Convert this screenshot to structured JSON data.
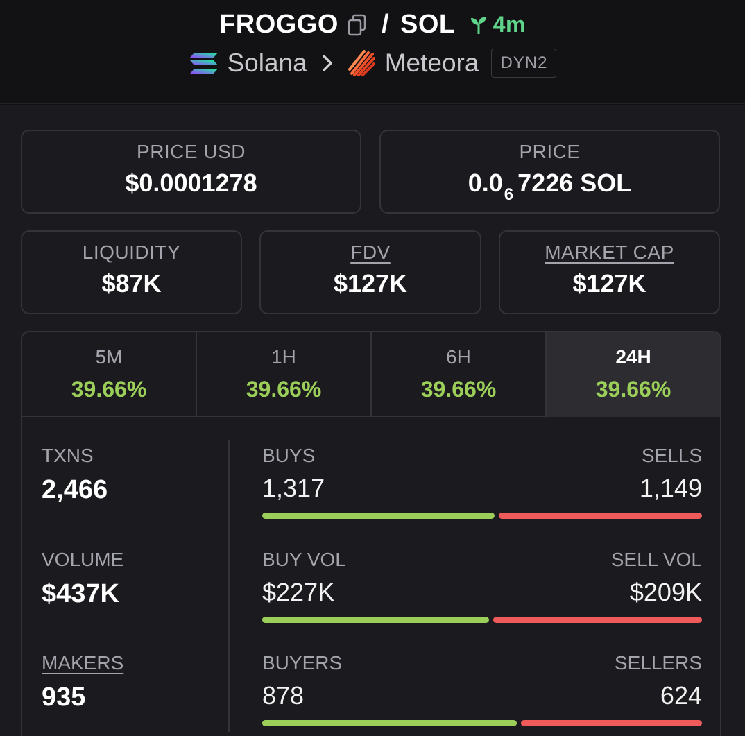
{
  "header": {
    "base_token": "FROGGO",
    "separator": "/",
    "quote_token": "SOL",
    "age": "4m",
    "chain": "Solana",
    "dex": "Meteora",
    "dex_badge": "DYN2",
    "colors": {
      "age": "#5fd48a"
    }
  },
  "price": {
    "usd_label": "PRICE USD",
    "usd_value": "$0.0001278",
    "native_label": "PRICE",
    "native_prefix": "0.0",
    "native_zeros": "6",
    "native_rest": "7226 SOL"
  },
  "metrics": {
    "liquidity_label": "LIQUIDITY",
    "liquidity_value": "$87K",
    "fdv_label": "FDV",
    "fdv_value": "$127K",
    "mcap_label": "MARKET CAP",
    "mcap_value": "$127K"
  },
  "timeframes": [
    {
      "label": "5M",
      "change": "39.66%"
    },
    {
      "label": "1H",
      "change": "39.66%"
    },
    {
      "label": "6H",
      "change": "39.66%"
    },
    {
      "label": "24H",
      "change": "39.66%",
      "active": true
    }
  ],
  "stats": {
    "txns_label": "TXNS",
    "txns_value": "2,466",
    "volume_label": "VOLUME",
    "volume_value": "$437K",
    "makers_label": "MAKERS",
    "makers_value": "935",
    "buys_label": "BUYS",
    "buys_value": "1,317",
    "sells_label": "SELLS",
    "sells_value": "1,149",
    "buys_fraction": 0.534,
    "buy_vol_label": "BUY VOL",
    "buy_vol_value": "$227K",
    "sell_vol_label": "SELL VOL",
    "sell_vol_value": "$209K",
    "buy_vol_fraction": 0.521,
    "buyers_label": "BUYERS",
    "buyers_value": "878",
    "sellers_label": "SELLERS",
    "sellers_value": "624",
    "buyers_fraction": 0.585,
    "colors": {
      "buy": "#9ccf59",
      "sell": "#ef5a5a",
      "positive": "#9ccf59"
    }
  }
}
